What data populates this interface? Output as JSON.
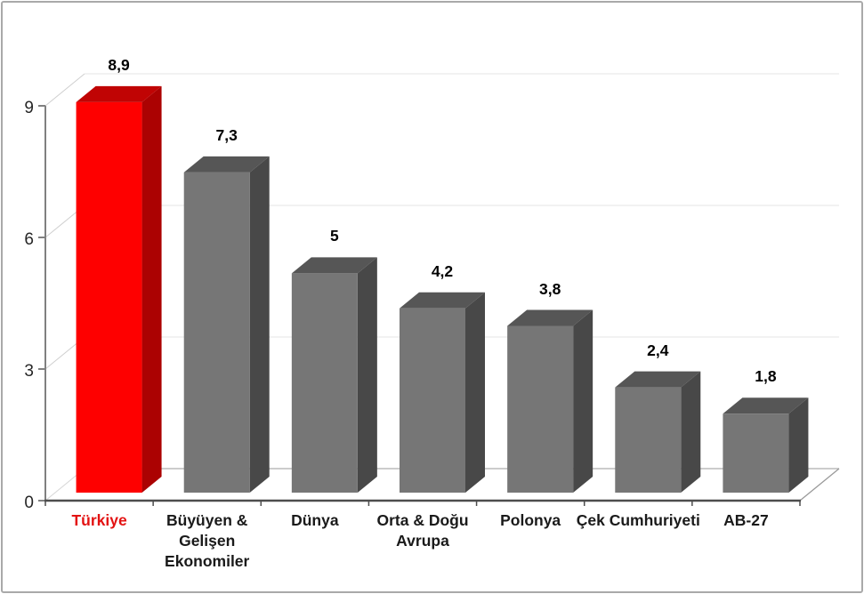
{
  "chart_data": {
    "type": "bar",
    "title": "",
    "xlabel": "",
    "ylabel": "",
    "categories": [
      "Türkiye",
      "Büyüyen & Gelişen Ekonomiler",
      "Dünya",
      "Orta & Doğu Avrupa",
      "Polonya",
      "Çek Cumhuriyeti",
      "AB-27"
    ],
    "category_display": [
      [
        "Türkiye"
      ],
      [
        "Büyüyen &",
        "Gelişen",
        "Ekonomiler"
      ],
      [
        "Dünya"
      ],
      [
        "Orta & Doğu",
        "Avrupa"
      ],
      [
        "Polonya"
      ],
      [
        "Çek Cumhuriyeti"
      ],
      [
        "AB-27"
      ]
    ],
    "values": [
      8.9,
      7.3,
      5,
      4.2,
      3.8,
      2.4,
      1.8
    ],
    "value_labels": [
      "8,9",
      "7,3",
      "5",
      "4,2",
      "3,8",
      "2,4",
      "1,8"
    ],
    "y_ticks": [
      "0",
      "3",
      "6",
      "9"
    ],
    "y_tick_values": [
      0,
      3,
      6,
      9
    ],
    "ylim": [
      0,
      9
    ],
    "grid": true,
    "legend": false,
    "style": "3d-column",
    "highlight_index": 0,
    "colors": {
      "highlight_front": "#fe0000",
      "highlight_top": "#c00404",
      "highlight_side": "#ab0202",
      "bar_front": "#767676",
      "bar_top": "#565656",
      "bar_side": "#484848",
      "highlight_label": "#e31212",
      "label": "#1a1a1a",
      "baseline": "#4d4d4d",
      "axis": "#808080",
      "grid_line": "#e9e9e9",
      "grid_diagonal": "#cfcfcf",
      "floor_back": "#adadad",
      "floor_side": "#9a9a9a",
      "floor_origin": "#d6d6d6"
    }
  }
}
